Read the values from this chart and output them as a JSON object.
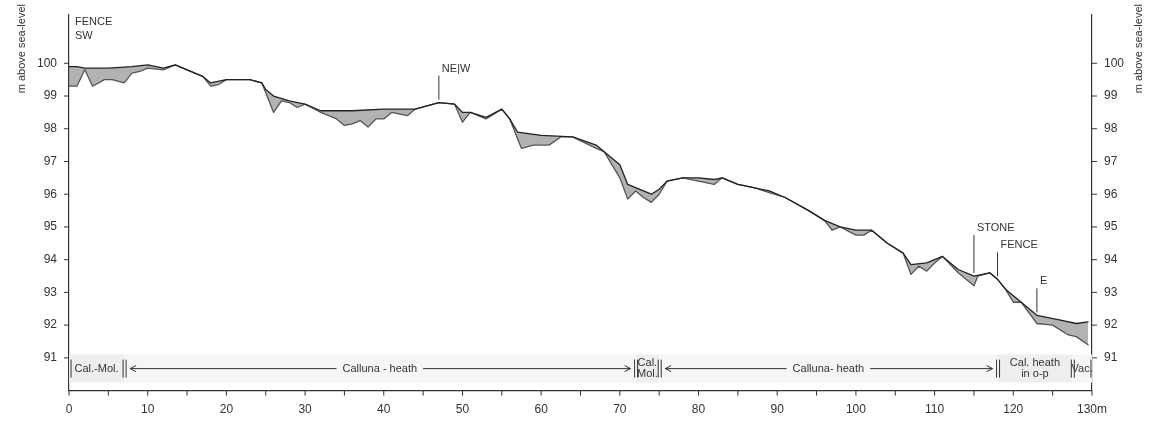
{
  "chart_data": {
    "type": "line",
    "ylabel": "m above sea-level",
    "y2label": "m above sea-level",
    "xlim": [
      0,
      130
    ],
    "xticks": [
      0,
      {
        "value": 5,
        "label": null
      },
      10,
      {
        "value": 15,
        "label": null
      },
      20,
      {
        "value": 25,
        "label": null
      },
      30,
      {
        "value": 35,
        "label": null
      },
      40,
      {
        "value": 45,
        "label": null
      },
      50,
      {
        "value": 55,
        "label": null
      },
      60,
      {
        "value": 65,
        "label": null
      },
      70,
      {
        "value": 75,
        "label": null
      },
      80,
      {
        "value": 85,
        "label": null
      },
      90,
      {
        "value": 95,
        "label": null
      },
      100,
      {
        "value": 105,
        "label": null
      },
      110,
      {
        "value": 115,
        "label": null
      },
      120,
      {
        "value": 125,
        "label": null
      },
      {
        "value": 130,
        "label": "130m"
      }
    ],
    "ylim": [
      90,
      101.5
    ],
    "yticks": [
      91,
      92,
      93,
      94,
      95,
      96,
      97,
      98,
      99,
      100
    ],
    "y2lim": [
      90,
      101.5
    ],
    "y2ticks": [
      91,
      92,
      93,
      94,
      95,
      96,
      97,
      98,
      99,
      100
    ],
    "grid": false,
    "legend": false,
    "marker": "none",
    "line_style": "solid",
    "series": [
      {
        "color": "#222222",
        "x": [
          0,
          1,
          2,
          5,
          8,
          10,
          12,
          13.5,
          15,
          17,
          18,
          20,
          23,
          24.5,
          25,
          26,
          28,
          30,
          32,
          36,
          40,
          44,
          47,
          49,
          50,
          51,
          53,
          55,
          56,
          57,
          60,
          64,
          67,
          68,
          70,
          71,
          72,
          74,
          75,
          76,
          78,
          80,
          82,
          83,
          85,
          87,
          89,
          91,
          94,
          96,
          98,
          100,
          102,
          104,
          106,
          107,
          109,
          111,
          113,
          115,
          117,
          118,
          119,
          120,
          121,
          123,
          126,
          128,
          129.5
        ],
        "values": [
          99.9,
          99.9,
          99.85,
          99.85,
          99.9,
          99.95,
          99.85,
          99.95,
          99.8,
          99.6,
          99.4,
          99.5,
          99.5,
          99.4,
          99.2,
          99.0,
          98.85,
          98.75,
          98.55,
          98.55,
          98.6,
          98.6,
          98.8,
          98.75,
          98.5,
          98.5,
          98.35,
          98.6,
          98.3,
          97.9,
          97.8,
          97.75,
          97.5,
          97.3,
          96.9,
          96.3,
          96.2,
          96.0,
          96.15,
          96.4,
          96.5,
          96.5,
          96.45,
          96.5,
          96.3,
          96.2,
          96.1,
          95.9,
          95.5,
          95.2,
          95.0,
          94.9,
          94.9,
          94.5,
          94.2,
          93.85,
          93.9,
          94.1,
          93.7,
          93.5,
          93.6,
          93.4,
          93.1,
          92.9,
          92.7,
          92.3,
          92.15,
          92.05,
          92.1
        ]
      },
      {
        "color": "#555555",
        "x": [
          0,
          1,
          2,
          3,
          4.5,
          5.5,
          7,
          8,
          9,
          10,
          12,
          13.5,
          15,
          17,
          18,
          19,
          20,
          23,
          24.5,
          25,
          26,
          27,
          28,
          29,
          30,
          32,
          34,
          35,
          36,
          37,
          38,
          39,
          40,
          41,
          43,
          44,
          47,
          49,
          50,
          51,
          53,
          55,
          56,
          57.5,
          59,
          61,
          62.5,
          64,
          67,
          68,
          70,
          71,
          72,
          73,
          74,
          75,
          76,
          78,
          80,
          82,
          83,
          85,
          87,
          89,
          91,
          94,
          96,
          97,
          98,
          100,
          101,
          102,
          104,
          106,
          107,
          108,
          109,
          110,
          111,
          113,
          115,
          115.5,
          117,
          118,
          119,
          120,
          121,
          123,
          125,
          127,
          128,
          129.5
        ],
        "values": [
          99.3,
          99.3,
          99.8,
          99.3,
          99.5,
          99.5,
          99.4,
          99.7,
          99.75,
          99.85,
          99.8,
          99.95,
          99.8,
          99.6,
          99.3,
          99.35,
          99.5,
          99.5,
          99.4,
          99.1,
          98.5,
          98.85,
          98.8,
          98.65,
          98.75,
          98.5,
          98.3,
          98.1,
          98.15,
          98.25,
          98.05,
          98.3,
          98.3,
          98.5,
          98.4,
          98.6,
          98.8,
          98.75,
          98.2,
          98.5,
          98.3,
          98.6,
          98.3,
          97.4,
          97.5,
          97.5,
          97.75,
          97.75,
          97.4,
          97.3,
          96.5,
          95.85,
          96.1,
          95.9,
          95.75,
          96.0,
          96.4,
          96.5,
          96.4,
          96.3,
          96.5,
          96.3,
          96.2,
          96.05,
          95.9,
          95.5,
          95.2,
          94.9,
          95.0,
          94.75,
          94.75,
          94.9,
          94.5,
          94.2,
          93.55,
          93.8,
          93.65,
          93.9,
          94.1,
          93.6,
          93.2,
          93.5,
          93.6,
          93.4,
          93.1,
          92.7,
          92.7,
          92.05,
          92.0,
          91.7,
          91.65,
          91.4
        ]
      }
    ],
    "bands": [
      {
        "axis": "x",
        "from": 0,
        "to": 7,
        "label": "Cal.-Mol.",
        "color": "#eeeeee"
      },
      {
        "axis": "x",
        "from": 7,
        "to": 72,
        "label": "Calluna - heath",
        "color": "#f6f6f6"
      },
      {
        "axis": "x",
        "from": 72,
        "to": 75,
        "label": "Cal. Mol.",
        "color": "#eeeeee"
      },
      {
        "axis": "x",
        "from": 75,
        "to": 118,
        "label": "Calluna- heath",
        "color": "#f6f6f6"
      },
      {
        "axis": "x",
        "from": 118,
        "to": 127.5,
        "label": "Cal. heath in o-p",
        "color": "#eeeeee"
      },
      {
        "axis": "x",
        "from": 127.5,
        "to": 130,
        "label": "Vac.",
        "color": "#f6f6f6"
      }
    ],
    "annotations": [
      "FENCE",
      "SW",
      {
        "text": "NE|W",
        "x": 47,
        "y": 98.8
      },
      {
        "text": "E",
        "x": 123,
        "y": 92.3
      },
      {
        "text": "FENCE",
        "x": 118,
        "y": 93.4
      },
      {
        "text": "STONE",
        "x": 115,
        "y": 93.5
      }
    ]
  }
}
